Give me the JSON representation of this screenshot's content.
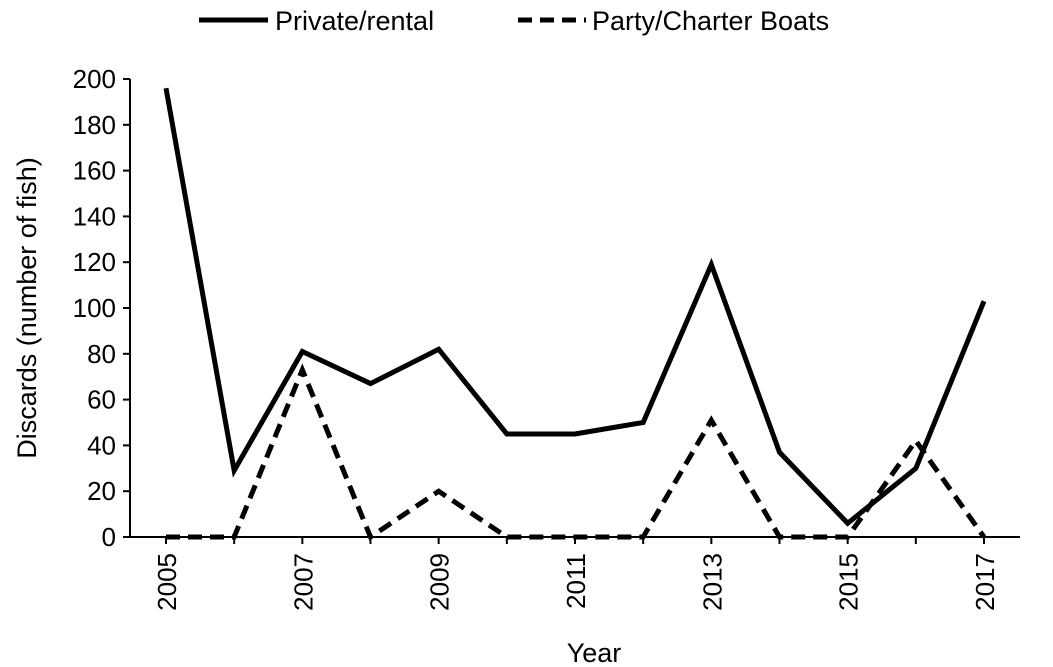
{
  "chart_data": {
    "type": "line",
    "title": "",
    "xlabel": "Year",
    "ylabel": "Discards (number of fish)",
    "x": [
      2005,
      2006,
      2007,
      2008,
      2009,
      2010,
      2011,
      2012,
      2013,
      2014,
      2015,
      2016,
      2017
    ],
    "x_tick_labels": [
      "2005",
      "2007",
      "2009",
      "2011",
      "2013",
      "2015",
      "2017"
    ],
    "y_tick_labels": [
      "0",
      "20",
      "40",
      "60",
      "80",
      "100",
      "120",
      "140",
      "160",
      "180",
      "200"
    ],
    "xlim": [
      2005,
      2017
    ],
    "ylim": [
      0,
      200
    ],
    "grid": false,
    "legend_position": "top",
    "series": [
      {
        "name": "Private/rental",
        "style": "solid",
        "color": "#000000",
        "values": [
          196,
          29,
          81,
          67,
          82,
          45,
          45,
          50,
          119,
          37,
          6,
          30,
          103
        ]
      },
      {
        "name": "Party/Charter Boats",
        "style": "dashed",
        "color": "#000000",
        "values": [
          0,
          0,
          73,
          0,
          20,
          0,
          0,
          0,
          51,
          0,
          0,
          42,
          0
        ]
      }
    ]
  }
}
